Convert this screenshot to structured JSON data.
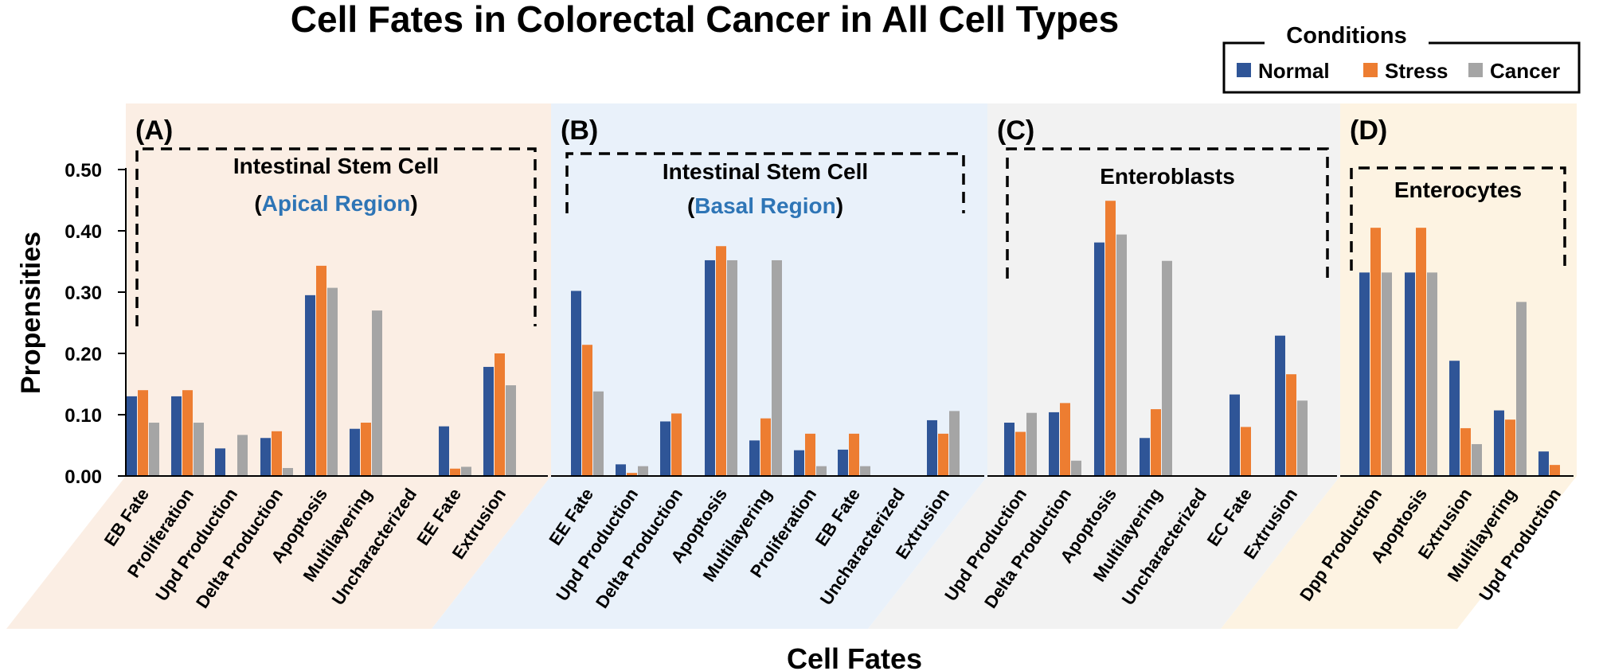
{
  "chart_data": {
    "type": "bar",
    "title": "Cell Fates in Colorectal Cancer in All Cell Types",
    "xlabel": "Cell Fates",
    "ylabel": "Propensities",
    "ylim": [
      0,
      0.5
    ],
    "yticks": [
      "0.00",
      "0.10",
      "0.20",
      "0.30",
      "0.40",
      "0.50"
    ],
    "legend": {
      "title": "Conditions",
      "position": "top-right",
      "entries": [
        "Normal",
        "Stress",
        "Cancer"
      ]
    },
    "series_names": [
      "Normal",
      "Stress",
      "Cancer"
    ],
    "colors": {
      "Normal": "#2f5597",
      "Stress": "#ed7d31",
      "Cancer": "#a5a5a5",
      "highlight": "#2e75b6"
    },
    "panels": [
      {
        "label": "(A)",
        "box_title": "Intestinal Stem Cell",
        "region": {
          "open": "(",
          "name": "Apical Region",
          "close": ")"
        },
        "background": "#fbeee4",
        "categories": [
          "EB Fate",
          "Proliferation",
          "Upd Production",
          "Delta Production",
          "Apoptosis",
          "Multilayering",
          "Uncharacterized",
          "EE Fate",
          "Extrusion"
        ],
        "series": [
          {
            "name": "Normal",
            "values": [
              0.13,
              0.13,
              0.045,
              0.062,
              0.295,
              0.077,
              0,
              0.081,
              0.178
            ]
          },
          {
            "name": "Stress",
            "values": [
              0.14,
              0.14,
              0,
              0.073,
              0.343,
              0.087,
              0,
              0.012,
              0.2
            ]
          },
          {
            "name": "Cancer",
            "values": [
              0.087,
              0.087,
              0.067,
              0.013,
              0.307,
              0.27,
              0,
              0.015,
              0.148
            ]
          }
        ]
      },
      {
        "label": "(B)",
        "box_title": "Intestinal Stem Cell",
        "region": {
          "open": "(",
          "name": "Basal Region",
          "close": ")"
        },
        "background": "#e9f1fa",
        "categories": [
          "EE Fate",
          "Upd Production",
          "Delta Production",
          "Apoptosis",
          "Multilayering",
          "Proliferation",
          "EB Fate",
          "Uncharacterized",
          "Extrusion"
        ],
        "series": [
          {
            "name": "Normal",
            "values": [
              0.302,
              0.019,
              0.089,
              0.352,
              0.058,
              0.042,
              0.043,
              0,
              0.091
            ]
          },
          {
            "name": "Stress",
            "values": [
              0.214,
              0.005,
              0.102,
              0.375,
              0.094,
              0.069,
              0.069,
              0,
              0.069
            ]
          },
          {
            "name": "Cancer",
            "values": [
              0.138,
              0.016,
              0,
              0.352,
              0.352,
              0.016,
              0.016,
              0,
              0.106
            ]
          }
        ]
      },
      {
        "label": "(C)",
        "box_title": "Enteroblasts",
        "background": "#f2f2f2",
        "categories": [
          "Upd Production",
          "Delta Production",
          "Apoptosis",
          "Multilayering",
          "Uncharacterized",
          "EC Fate",
          "Extrusion"
        ],
        "series": [
          {
            "name": "Normal",
            "values": [
              0.087,
              0.104,
              0.381,
              0.062,
              0,
              0.133,
              0.229
            ]
          },
          {
            "name": "Stress",
            "values": [
              0.072,
              0.119,
              0.449,
              0.109,
              0,
              0.08,
              0.166
            ]
          },
          {
            "name": "Cancer",
            "values": [
              0.103,
              0.025,
              0.394,
              0.351,
              0,
              0,
              0.123
            ]
          }
        ]
      },
      {
        "label": "(D)",
        "box_title": "Enterocytes",
        "background": "#fdf3e2",
        "categories": [
          "Dpp Production",
          "Apoptosis",
          "Extrusion",
          "Multilayering",
          "Upd Production"
        ],
        "series": [
          {
            "name": "Normal",
            "values": [
              0.332,
              0.332,
              0.188,
              0.107,
              0.04
            ]
          },
          {
            "name": "Stress",
            "values": [
              0.405,
              0.405,
              0.078,
              0.092,
              0.018
            ]
          },
          {
            "name": "Cancer",
            "values": [
              0.332,
              0.332,
              0.052,
              0.284,
              0
            ]
          }
        ]
      }
    ]
  }
}
